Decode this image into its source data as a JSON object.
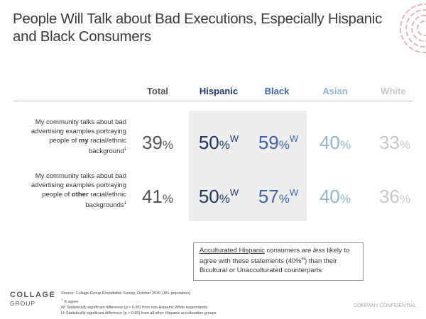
{
  "title": "People Will Talk about Bad Executions, Especially Hispanic and Black Consumers",
  "chart_data": {
    "type": "table",
    "columns": [
      "Total",
      "Hispanic",
      "Black",
      "Asian",
      "White"
    ],
    "rows": [
      {
        "label_before": "My community talks about bad advertising examples portraying people of ",
        "label_emph": "my",
        "label_after": " racial/ethnic background",
        "label_sup": "1",
        "values": [
          {
            "v": "39",
            "sig": ""
          },
          {
            "v": "50",
            "sig": "W"
          },
          {
            "v": "59",
            "sig": "W"
          },
          {
            "v": "40",
            "sig": ""
          },
          {
            "v": "33",
            "sig": ""
          }
        ]
      },
      {
        "label_before": "My community talks about bad advertising examples portraying people of ",
        "label_emph": "other",
        "label_after": " racial/ethnic backgrounds",
        "label_sup": "1",
        "values": [
          {
            "v": "41",
            "sig": ""
          },
          {
            "v": "50",
            "sig": "W"
          },
          {
            "v": "57",
            "sig": "W"
          },
          {
            "v": "40",
            "sig": ""
          },
          {
            "v": "36",
            "sig": ""
          }
        ]
      }
    ],
    "percent_symbol": "%",
    "colors": {
      "Total": "#555555",
      "Hispanic": "#1f3864",
      "Black": "#3f63ad",
      "Asian": "#8fb4d1",
      "White": "#c8c8c8"
    }
  },
  "callout": {
    "underlined": "Acculturated Hispanic",
    "text1": " consumers are ",
    "emph": "less",
    "text2": " likely to agree with these statements (40%",
    "sup": "H",
    "text3": ") than their Bicultural or Unacculturated counterparts"
  },
  "logo": {
    "line1": "COLLAGE",
    "line2": "GROUP"
  },
  "footnotes": {
    "source": "Source: Collage Group Roundtable Survey, October 2020 (18+ population)",
    "note1_sup": "1",
    "note1": " % agree",
    "note_w": "W: Statistically significant difference (p > 0.95) from non-Hispanic White respondents",
    "note_h": "H: Statistically significant difference (p > 0.95) from all other Hispanic acculturation groups"
  },
  "confidential": "COMPANY CONFIDENTIAL",
  "icons": {
    "decoration": "concentric-arcs-icon"
  }
}
